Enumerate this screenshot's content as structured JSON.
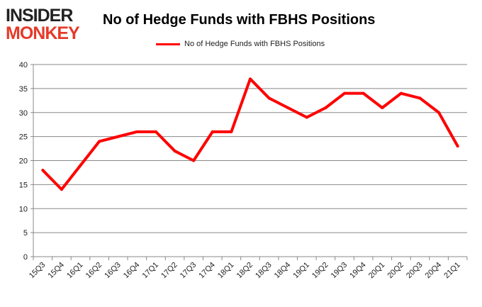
{
  "logo": {
    "line1": "INSIDER",
    "line2": "MONKEY"
  },
  "chart_data": {
    "type": "line",
    "title": "No of Hedge Funds with FBHS Positions",
    "legend": "No of Hedge Funds with FBHS Positions",
    "legend_position": "top-center",
    "categories": [
      "15Q3",
      "15Q4",
      "16Q1",
      "16Q2",
      "16Q3",
      "16Q4",
      "17Q1",
      "17Q2",
      "17Q3",
      "17Q4",
      "18Q1",
      "18Q2",
      "18Q3",
      "18Q4",
      "19Q1",
      "19Q2",
      "19Q3",
      "19Q4",
      "20Q1",
      "20Q2",
      "20Q3",
      "20Q4",
      "21Q1"
    ],
    "values": [
      18,
      14,
      19,
      24,
      25,
      26,
      26,
      22,
      20,
      26,
      26,
      37,
      33,
      31,
      29,
      31,
      34,
      34,
      31,
      34,
      33,
      30,
      23
    ],
    "ylim": [
      0,
      40
    ],
    "yticks": [
      0,
      5,
      10,
      15,
      20,
      25,
      30,
      35,
      40
    ],
    "grid": true,
    "color": "#ff0000"
  }
}
